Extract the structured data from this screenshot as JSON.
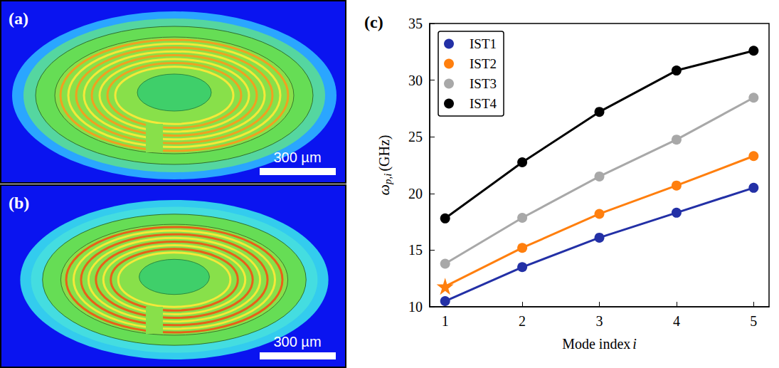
{
  "chart_data": {
    "type": "line",
    "panel": "(c)",
    "xlabel": {
      "text": "Mode index",
      "variable": "i"
    },
    "ylabel": {
      "symbol": "ω",
      "subscript": "p,i",
      "unit": "(GHz)"
    },
    "x": [
      1,
      2,
      3,
      4,
      5
    ],
    "xlim": [
      0.8,
      5.2
    ],
    "xticks": [
      1,
      2,
      3,
      4,
      5
    ],
    "ylim": [
      10,
      35
    ],
    "yticks": [
      10,
      15,
      20,
      25,
      30,
      35
    ],
    "grid": false,
    "legend": "upper left",
    "series": [
      {
        "name": "IST1",
        "color": "#2330a6",
        "marker": "circle",
        "line_style": "solid",
        "values": [
          10.5,
          13.5,
          16.1,
          18.3,
          20.5
        ]
      },
      {
        "name": "IST2",
        "color": "#ff7f0e",
        "marker": "circle",
        "markers": [
          "star",
          "circle",
          "circle",
          "circle",
          "circle"
        ],
        "line_style": "solid",
        "values": [
          11.8,
          15.2,
          18.2,
          20.7,
          23.3
        ]
      },
      {
        "name": "IST3",
        "color": "#a8a8a8",
        "marker": "circle",
        "line_style": "solid",
        "values": [
          13.8,
          17.85,
          21.5,
          24.75,
          28.45
        ]
      },
      {
        "name": "IST4",
        "color": "#000000",
        "marker": "circle",
        "line_style": "solid",
        "values": [
          17.8,
          22.75,
          27.2,
          30.85,
          32.6
        ]
      }
    ]
  },
  "images": [
    {
      "panel": "(a)",
      "scale_bar": "300 µm"
    },
    {
      "panel": "(b)",
      "scale_bar": "300 µm"
    }
  ]
}
